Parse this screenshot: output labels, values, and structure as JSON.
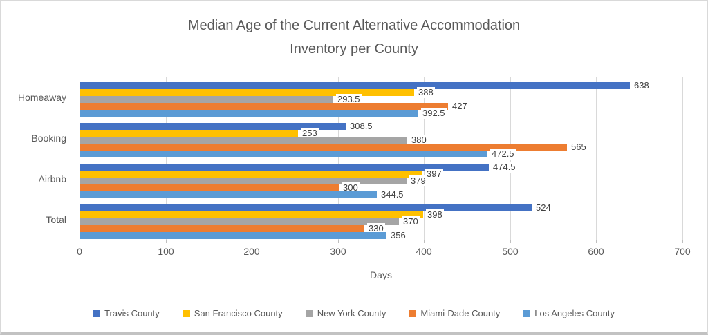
{
  "chart": {
    "title_line1": "Median Age of the Current Alternative Accommodation",
    "title_line2": "Inventory per County"
  },
  "chart_data": {
    "type": "bar",
    "orientation": "horizontal",
    "title": "Median Age of the Current Alternative Accommodation Inventory per County",
    "xlabel": "Days",
    "xlim": [
      0,
      700
    ],
    "x_ticks": [
      0,
      100,
      200,
      300,
      400,
      500,
      600,
      700
    ],
    "grid": true,
    "data_labels": true,
    "legend_position": "bottom",
    "categories_note": "categories listed top-to-bottom as displayed; series listed top-to-bottom within each cluster",
    "categories": [
      "Homeaway",
      "Booking",
      "Airbnb",
      "Total"
    ],
    "series": [
      {
        "name": "Travis County",
        "color": "#4472C4",
        "values": [
          638,
          308.5,
          474.5,
          524
        ]
      },
      {
        "name": "San Francisco County",
        "color": "#FFC000",
        "values": [
          388,
          253,
          397,
          398
        ]
      },
      {
        "name": "New York County",
        "color": "#A5A5A5",
        "values": [
          293.5,
          380,
          379,
          370
        ]
      },
      {
        "name": "Miami-Dade County",
        "color": "#ED7D31",
        "values": [
          427,
          565,
          300,
          330
        ]
      },
      {
        "name": "Los Angeles County",
        "color": "#5B9BD5",
        "values": [
          392.5,
          472.5,
          344.5,
          356
        ]
      }
    ],
    "style_colors": {
      "title_text": "#595959",
      "axis_text": "#595959",
      "data_label_text": "#404040",
      "gridline": "#D9D9D9",
      "axis_line": "#BFBFBF"
    }
  }
}
